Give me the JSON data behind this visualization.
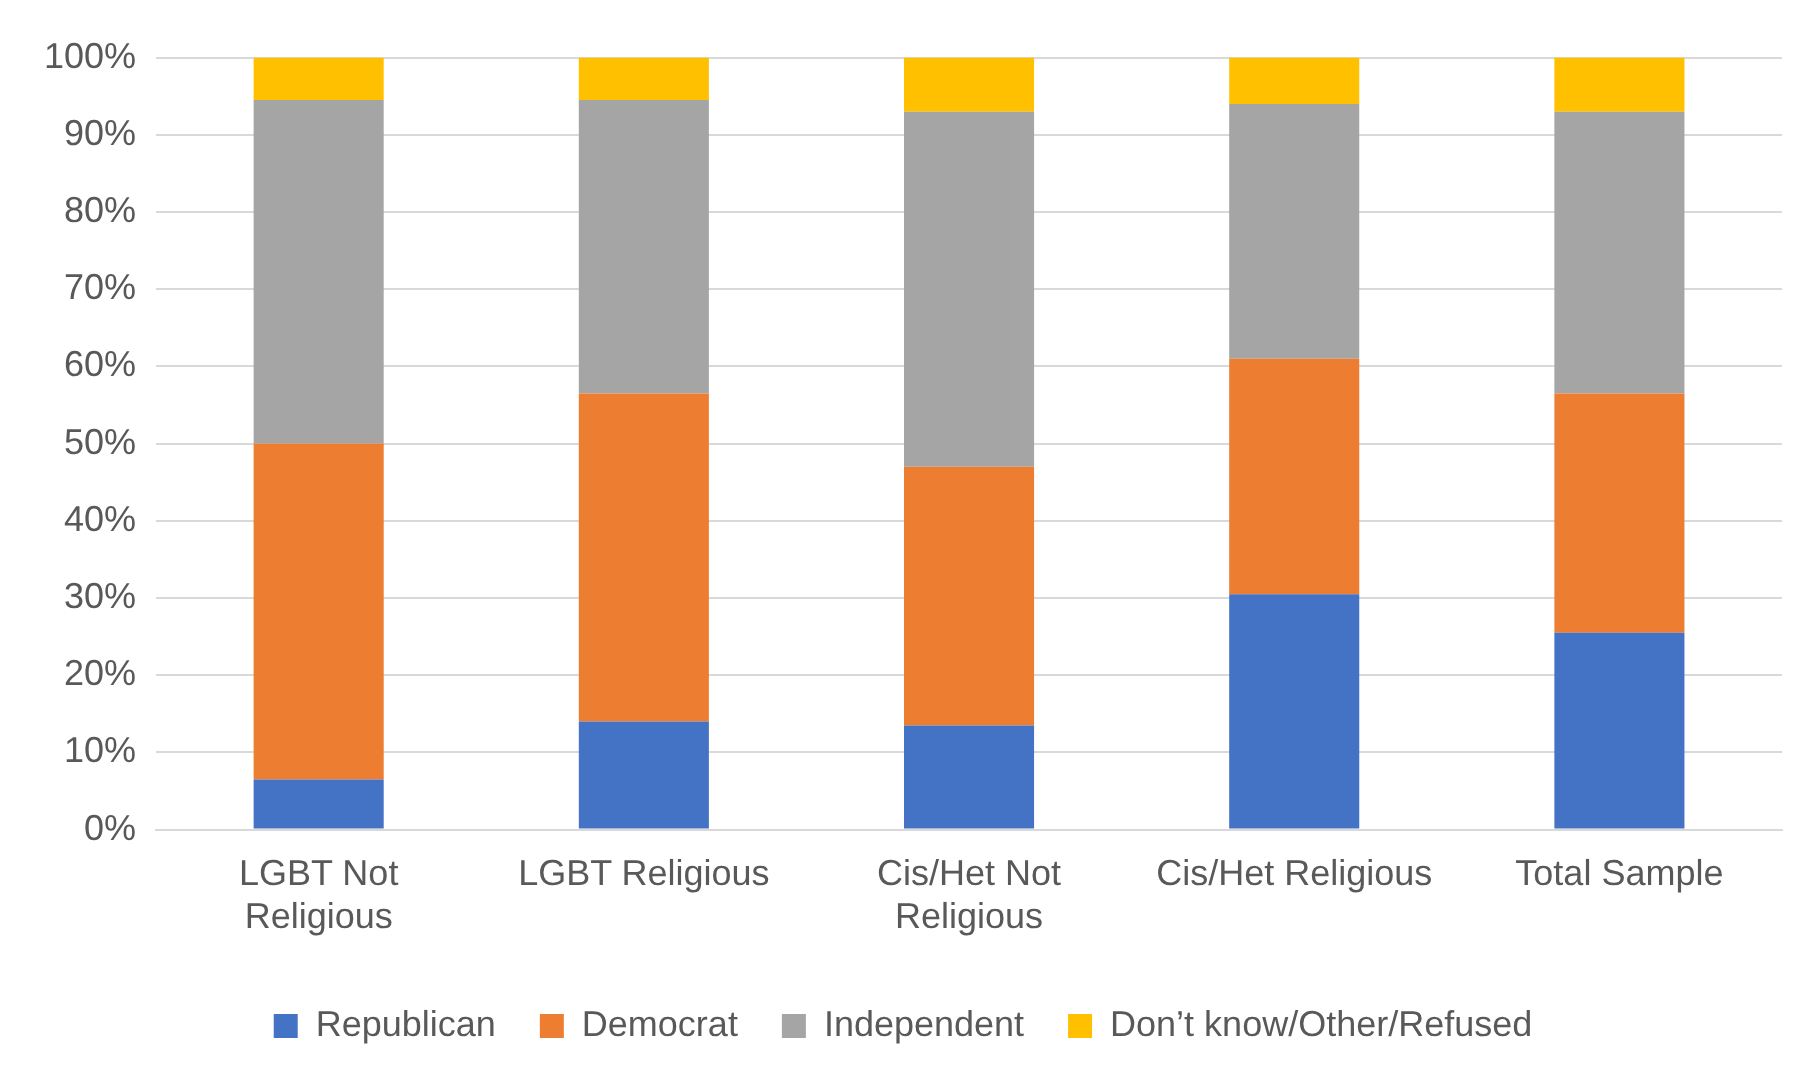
{
  "chart_data": {
    "type": "bar",
    "stacked": true,
    "categories": [
      "LGBT Not Religious",
      "LGBT Religious",
      "Cis/Het Not Religious",
      "Cis/Het Religious",
      "Total Sample"
    ],
    "series": [
      {
        "name": "Republican",
        "color": "#4472c4",
        "values": [
          6.5,
          14,
          13.5,
          30.5,
          25.5
        ]
      },
      {
        "name": "Democrat",
        "color": "#ed7d31",
        "values": [
          43.5,
          42.5,
          33.5,
          30.5,
          31
        ]
      },
      {
        "name": "Independent",
        "color": "#a5a5a5",
        "values": [
          44.5,
          38,
          46,
          33,
          36.5
        ]
      },
      {
        "name": "Don’t know/Other/Refused",
        "color": "#ffc000",
        "values": [
          5.5,
          5.5,
          7,
          6,
          7
        ]
      }
    ],
    "ylim": [
      0,
      100
    ],
    "yticks": [
      {
        "value": 0,
        "label": "0%"
      },
      {
        "value": 10,
        "label": "10%"
      },
      {
        "value": 20,
        "label": "20%"
      },
      {
        "value": 30,
        "label": "30%"
      },
      {
        "value": 40,
        "label": "40%"
      },
      {
        "value": 50,
        "label": "50%"
      },
      {
        "value": 60,
        "label": "60%"
      },
      {
        "value": 70,
        "label": "70%"
      },
      {
        "value": 80,
        "label": "80%"
      },
      {
        "value": 90,
        "label": "90%"
      },
      {
        "value": 100,
        "label": "100%"
      }
    ],
    "grid": "y",
    "legend": "bottom"
  }
}
